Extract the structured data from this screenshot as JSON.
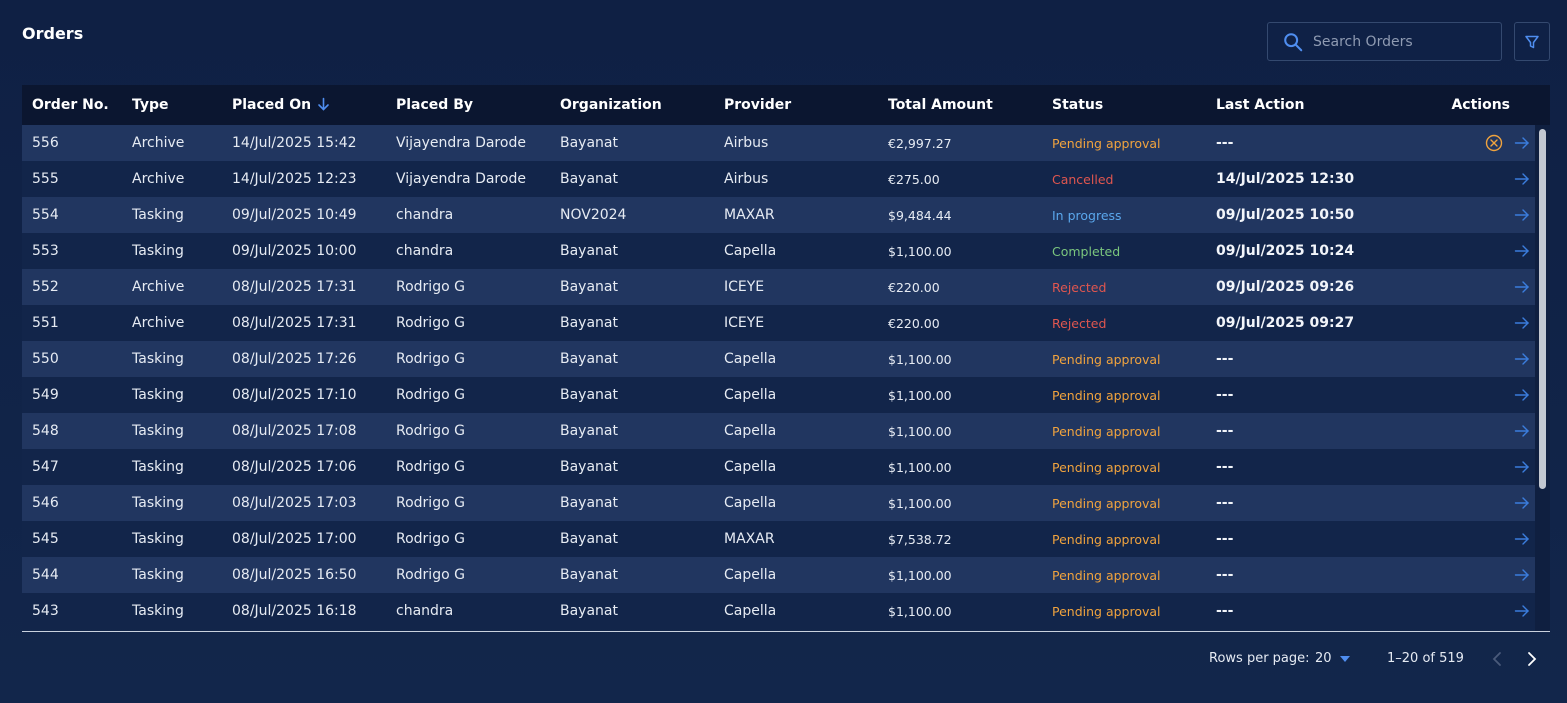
{
  "header": {
    "title": "Orders",
    "search_placeholder": "Search Orders"
  },
  "colors": {
    "background": "#112347",
    "header_row": "#0b1630",
    "pending": "#f0a33e",
    "cancelled": "#e0564f",
    "in_progress": "#5aa7ec",
    "completed": "#7bc67e",
    "accent_blue": "#3b7ddd"
  },
  "table": {
    "columns": [
      "Order No.",
      "Type",
      "Placed On",
      "Placed By",
      "Organization",
      "Provider",
      "Total Amount",
      "Status",
      "Last Action",
      "Actions"
    ],
    "sorted_column": "Placed On",
    "sort_direction": "descending",
    "rows": [
      {
        "order_no": "556",
        "type": "Archive",
        "placed_on": "14/Jul/2025 15:42",
        "placed_by": "Vijayendra Darode",
        "organization": "Bayanat",
        "provider": "Airbus",
        "total": "€2,997.27",
        "status": "Pending approval",
        "status_kind": "pending",
        "last_action": "---",
        "cancel": true
      },
      {
        "order_no": "555",
        "type": "Archive",
        "placed_on": "14/Jul/2025 12:23",
        "placed_by": "Vijayendra Darode",
        "organization": "Bayanat",
        "provider": "Airbus",
        "total": "€275.00",
        "status": "Cancelled",
        "status_kind": "cancelled",
        "last_action": "14/Jul/2025 12:30",
        "cancel": false
      },
      {
        "order_no": "554",
        "type": "Tasking",
        "placed_on": "09/Jul/2025 10:49",
        "placed_by": "chandra",
        "organization": "NOV2024",
        "provider": "MAXAR",
        "total": "$9,484.44",
        "status": "In progress",
        "status_kind": "progress",
        "last_action": "09/Jul/2025 10:50",
        "cancel": false
      },
      {
        "order_no": "553",
        "type": "Tasking",
        "placed_on": "09/Jul/2025 10:00",
        "placed_by": "chandra",
        "organization": "Bayanat",
        "provider": "Capella",
        "total": "$1,100.00",
        "status": "Completed",
        "status_kind": "completed",
        "last_action": "09/Jul/2025 10:24",
        "cancel": false
      },
      {
        "order_no": "552",
        "type": "Archive",
        "placed_on": "08/Jul/2025 17:31",
        "placed_by": "Rodrigo G",
        "organization": "Bayanat",
        "provider": "ICEYE",
        "total": "€220.00",
        "status": "Rejected",
        "status_kind": "rejected",
        "last_action": "09/Jul/2025 09:26",
        "cancel": false
      },
      {
        "order_no": "551",
        "type": "Archive",
        "placed_on": "08/Jul/2025 17:31",
        "placed_by": "Rodrigo G",
        "organization": "Bayanat",
        "provider": "ICEYE",
        "total": "€220.00",
        "status": "Rejected",
        "status_kind": "rejected",
        "last_action": "09/Jul/2025 09:27",
        "cancel": false
      },
      {
        "order_no": "550",
        "type": "Tasking",
        "placed_on": "08/Jul/2025 17:26",
        "placed_by": "Rodrigo G",
        "organization": "Bayanat",
        "provider": "Capella",
        "total": "$1,100.00",
        "status": "Pending approval",
        "status_kind": "pending",
        "last_action": "---",
        "cancel": false
      },
      {
        "order_no": "549",
        "type": "Tasking",
        "placed_on": "08/Jul/2025 17:10",
        "placed_by": "Rodrigo G",
        "organization": "Bayanat",
        "provider": "Capella",
        "total": "$1,100.00",
        "status": "Pending approval",
        "status_kind": "pending",
        "last_action": "---",
        "cancel": false
      },
      {
        "order_no": "548",
        "type": "Tasking",
        "placed_on": "08/Jul/2025 17:08",
        "placed_by": "Rodrigo G",
        "organization": "Bayanat",
        "provider": "Capella",
        "total": "$1,100.00",
        "status": "Pending approval",
        "status_kind": "pending",
        "last_action": "---",
        "cancel": false
      },
      {
        "order_no": "547",
        "type": "Tasking",
        "placed_on": "08/Jul/2025 17:06",
        "placed_by": "Rodrigo G",
        "organization": "Bayanat",
        "provider": "Capella",
        "total": "$1,100.00",
        "status": "Pending approval",
        "status_kind": "pending",
        "last_action": "---",
        "cancel": false
      },
      {
        "order_no": "546",
        "type": "Tasking",
        "placed_on": "08/Jul/2025 17:03",
        "placed_by": "Rodrigo G",
        "organization": "Bayanat",
        "provider": "Capella",
        "total": "$1,100.00",
        "status": "Pending approval",
        "status_kind": "pending",
        "last_action": "---",
        "cancel": false
      },
      {
        "order_no": "545",
        "type": "Tasking",
        "placed_on": "08/Jul/2025 17:00",
        "placed_by": "Rodrigo G",
        "organization": "Bayanat",
        "provider": "MAXAR",
        "total": "$7,538.72",
        "status": "Pending approval",
        "status_kind": "pending",
        "last_action": "---",
        "cancel": false
      },
      {
        "order_no": "544",
        "type": "Tasking",
        "placed_on": "08/Jul/2025 16:50",
        "placed_by": "Rodrigo G",
        "organization": "Bayanat",
        "provider": "Capella",
        "total": "$1,100.00",
        "status": "Pending approval",
        "status_kind": "pending",
        "last_action": "---",
        "cancel": false
      },
      {
        "order_no": "543",
        "type": "Tasking",
        "placed_on": "08/Jul/2025 16:18",
        "placed_by": "chandra",
        "organization": "Bayanat",
        "provider": "Capella",
        "total": "$1,100.00",
        "status": "Pending approval",
        "status_kind": "pending",
        "last_action": "---",
        "cancel": false
      }
    ]
  },
  "pagination": {
    "rows_per_page_label": "Rows per page:",
    "rows_per_page": "20",
    "range": "1–20 of 519"
  }
}
